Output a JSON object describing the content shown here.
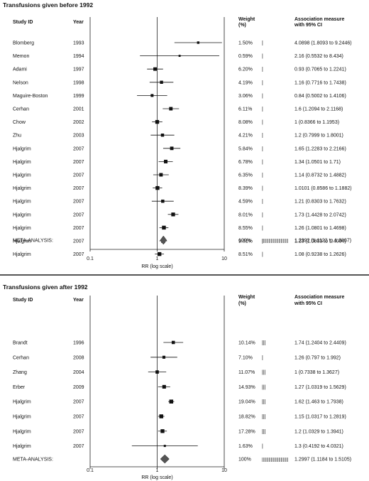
{
  "chart_data": [
    {
      "type": "forest",
      "title": "Transfusions given before 1992",
      "xlabel": "RR (log scale)",
      "xscale": "log",
      "xlim": [
        0.1,
        10
      ],
      "xticks": [
        "0.1",
        "1",
        "10"
      ],
      "headers": {
        "study": "Study ID",
        "year": "Year",
        "weight_l1": "Weight",
        "weight_l2": "(%)",
        "assoc_l1": "Association measure",
        "assoc_l2": "with 95% CI"
      },
      "studies": [
        {
          "study": "Blomberg",
          "year": "1993",
          "weight": "1.50%",
          "bars": "|",
          "est": 4.0898,
          "lo": 1.8093,
          "hi": 9.2446,
          "label": "4.0898 (1.8093 to 9.2446)"
        },
        {
          "study": "Memon",
          "year": "1994",
          "weight": "0.59%",
          "bars": "|",
          "est": 2.16,
          "lo": 0.5532,
          "hi": 8.434,
          "label": "2.16 (0.5532 to 8.434)"
        },
        {
          "study": "Adami",
          "year": "1997",
          "weight": "6.20%",
          "bars": "|",
          "est": 0.93,
          "lo": 0.7065,
          "hi": 1.2241,
          "label": "0.93 (0.7065 to 1.2241)"
        },
        {
          "study": "Nelson",
          "year": "1998",
          "weight": "4.19%",
          "bars": "|",
          "est": 1.16,
          "lo": 0.7716,
          "hi": 1.7438,
          "label": "1.16 (0.7716 to 1.7438)"
        },
        {
          "study": "Maguire-Boston",
          "year": "1999",
          "weight": "3.06%",
          "bars": "|",
          "est": 0.84,
          "lo": 0.5002,
          "hi": 1.4106,
          "label": "0.84 (0.5002 to 1.4106)"
        },
        {
          "study": "Cerhan",
          "year": "2001",
          "weight": "6.11%",
          "bars": "|",
          "est": 1.6,
          "lo": 1.2094,
          "hi": 2.1168,
          "label": "1.6 (1.2094 to 2.1168)"
        },
        {
          "study": "Chow",
          "year": "2002",
          "weight": "8.08%",
          "bars": "|",
          "est": 1,
          "lo": 0.8366,
          "hi": 1.1953,
          "label": "1 (0.8366 to 1.1953)"
        },
        {
          "study": "Zhu",
          "year": "2003",
          "weight": "4.21%",
          "bars": "|",
          "est": 1.2,
          "lo": 0.7999,
          "hi": 1.8001,
          "label": "1.2 (0.7999 to 1.8001)"
        },
        {
          "study": "Hjalgrim",
          "year": "2007",
          "weight": "5.84%",
          "bars": "|",
          "est": 1.65,
          "lo": 1.2283,
          "hi": 2.2166,
          "label": "1.65 (1.2283 to 2.2166)"
        },
        {
          "study": "Hjalgrim",
          "year": "2007",
          "weight": "6.78%",
          "bars": "|",
          "est": 1.34,
          "lo": 1.0501,
          "hi": 1.71,
          "label": "1.34 (1.0501 to 1.71)"
        },
        {
          "study": "Hjalgrim",
          "year": "2007",
          "weight": "6.35%",
          "bars": "|",
          "est": 1.14,
          "lo": 0.8732,
          "hi": 1.4882,
          "label": "1.14 (0.8732 to 1.4882)"
        },
        {
          "study": "Hjalgrim",
          "year": "2007",
          "weight": "8.39%",
          "bars": "|",
          "est": 1.0101,
          "lo": 0.8586,
          "hi": 1.1882,
          "label": "1.0101 (0.8586 to 1.1882)"
        },
        {
          "study": "Hjalgrim",
          "year": "2007",
          "weight": "4.59%",
          "bars": "|",
          "est": 1.21,
          "lo": 0.8303,
          "hi": 1.7632,
          "label": "1.21 (0.8303 to 1.7632)"
        },
        {
          "study": "Hjalgrim",
          "year": "2007",
          "weight": "8.01%",
          "bars": "|",
          "est": 1.73,
          "lo": 1.4428,
          "hi": 2.0742,
          "label": "1.73 (1.4428 to 2.0742)"
        },
        {
          "study": "Hjalgrim",
          "year": "2007",
          "weight": "8.55%",
          "bars": "|",
          "est": 1.26,
          "lo": 1.0801,
          "hi": 1.4698,
          "label": "1.26 (1.0801 to 1.4698)"
        },
        {
          "study": "Hjalgrim",
          "year": "2007",
          "weight": "9.01%",
          "bars": "|",
          "est": 1.23,
          "lo": 1.0803,
          "hi": 1.4004,
          "label": "1.23 (1.0803 to 1.4004)"
        },
        {
          "study": "Hjalgrim",
          "year": "2007",
          "weight": "8.51%",
          "bars": "|",
          "est": 1.08,
          "lo": 0.9238,
          "hi": 1.2626,
          "label": "1.08 (0.9238 to 1.2626)"
        }
      ],
      "meta": {
        "study": "META-ANALYSIS:",
        "weight": "100%",
        "bars": "||||||||||||||||||||||||",
        "est": 1.2392,
        "lo": 1.1122,
        "hi": 1.3807,
        "label": "1.2392 (1.1122 to 1.3807)"
      }
    },
    {
      "type": "forest",
      "title": "Transfusions given after 1992",
      "xlabel": "RR (log scale)",
      "xscale": "log",
      "xlim": [
        0.1,
        10
      ],
      "xticks": [
        "0.1",
        "1",
        "10"
      ],
      "headers": {
        "study": "Study ID",
        "year": "Year",
        "weight_l1": "Weight",
        "weight_l2": "(%)",
        "assoc_l1": "Association measure",
        "assoc_l2": "with 95% CI"
      },
      "studies": [
        {
          "study": "Brandt",
          "year": "1996",
          "weight": "10.14%",
          "bars": "|||",
          "est": 1.74,
          "lo": 1.2404,
          "hi": 2.4409,
          "label": "1.74 (1.2404 to 2.4409)"
        },
        {
          "study": "Cerhan",
          "year": "2008",
          "weight": "7.10%",
          "bars": "|",
          "est": 1.26,
          "lo": 0.797,
          "hi": 1.992,
          "label": "1.26 (0.797 to 1.992)"
        },
        {
          "study": "Zhang",
          "year": "2004",
          "weight": "11.07%",
          "bars": "|||",
          "est": 1,
          "lo": 0.7338,
          "hi": 1.3627,
          "label": "1 (0.7338 to 1.3627)"
        },
        {
          "study": "Erber",
          "year": "2009",
          "weight": "14.93%",
          "bars": "|||",
          "est": 1.27,
          "lo": 1.0319,
          "hi": 1.5629,
          "label": "1.27 (1.0319 to 1.5629)"
        },
        {
          "study": "Hjalgrim",
          "year": "2007",
          "weight": "19.04%",
          "bars": "|||",
          "est": 1.62,
          "lo": 1.463,
          "hi": 1.7938,
          "label": "1.62 (1.463 to 1.7938)"
        },
        {
          "study": "Hjalgrim",
          "year": "2007",
          "weight": "18.82%",
          "bars": "|||",
          "est": 1.15,
          "lo": 1.0317,
          "hi": 1.2819,
          "label": "1.15 (1.0317 to 1.2819)"
        },
        {
          "study": "Hjalgrim",
          "year": "2007",
          "weight": "17.28%",
          "bars": "|||",
          "est": 1.2,
          "lo": 1.0329,
          "hi": 1.3941,
          "label": "1.2 (1.0329 to 1.3941)"
        },
        {
          "study": "Hjalgrim",
          "year": "2007",
          "weight": "1.63%",
          "bars": "|",
          "est": 1.3,
          "lo": 0.4192,
          "hi": 4.0321,
          "label": "1.3 (0.4192 to 4.0321)"
        }
      ],
      "meta": {
        "study": "META-ANALYSIS:",
        "weight": "100%",
        "bars": "||||||||||||||||||||||||",
        "est": 1.2997,
        "lo": 1.1184,
        "hi": 1.5105,
        "label": "1.2997 (1.1184 to 1.5105)"
      }
    }
  ]
}
